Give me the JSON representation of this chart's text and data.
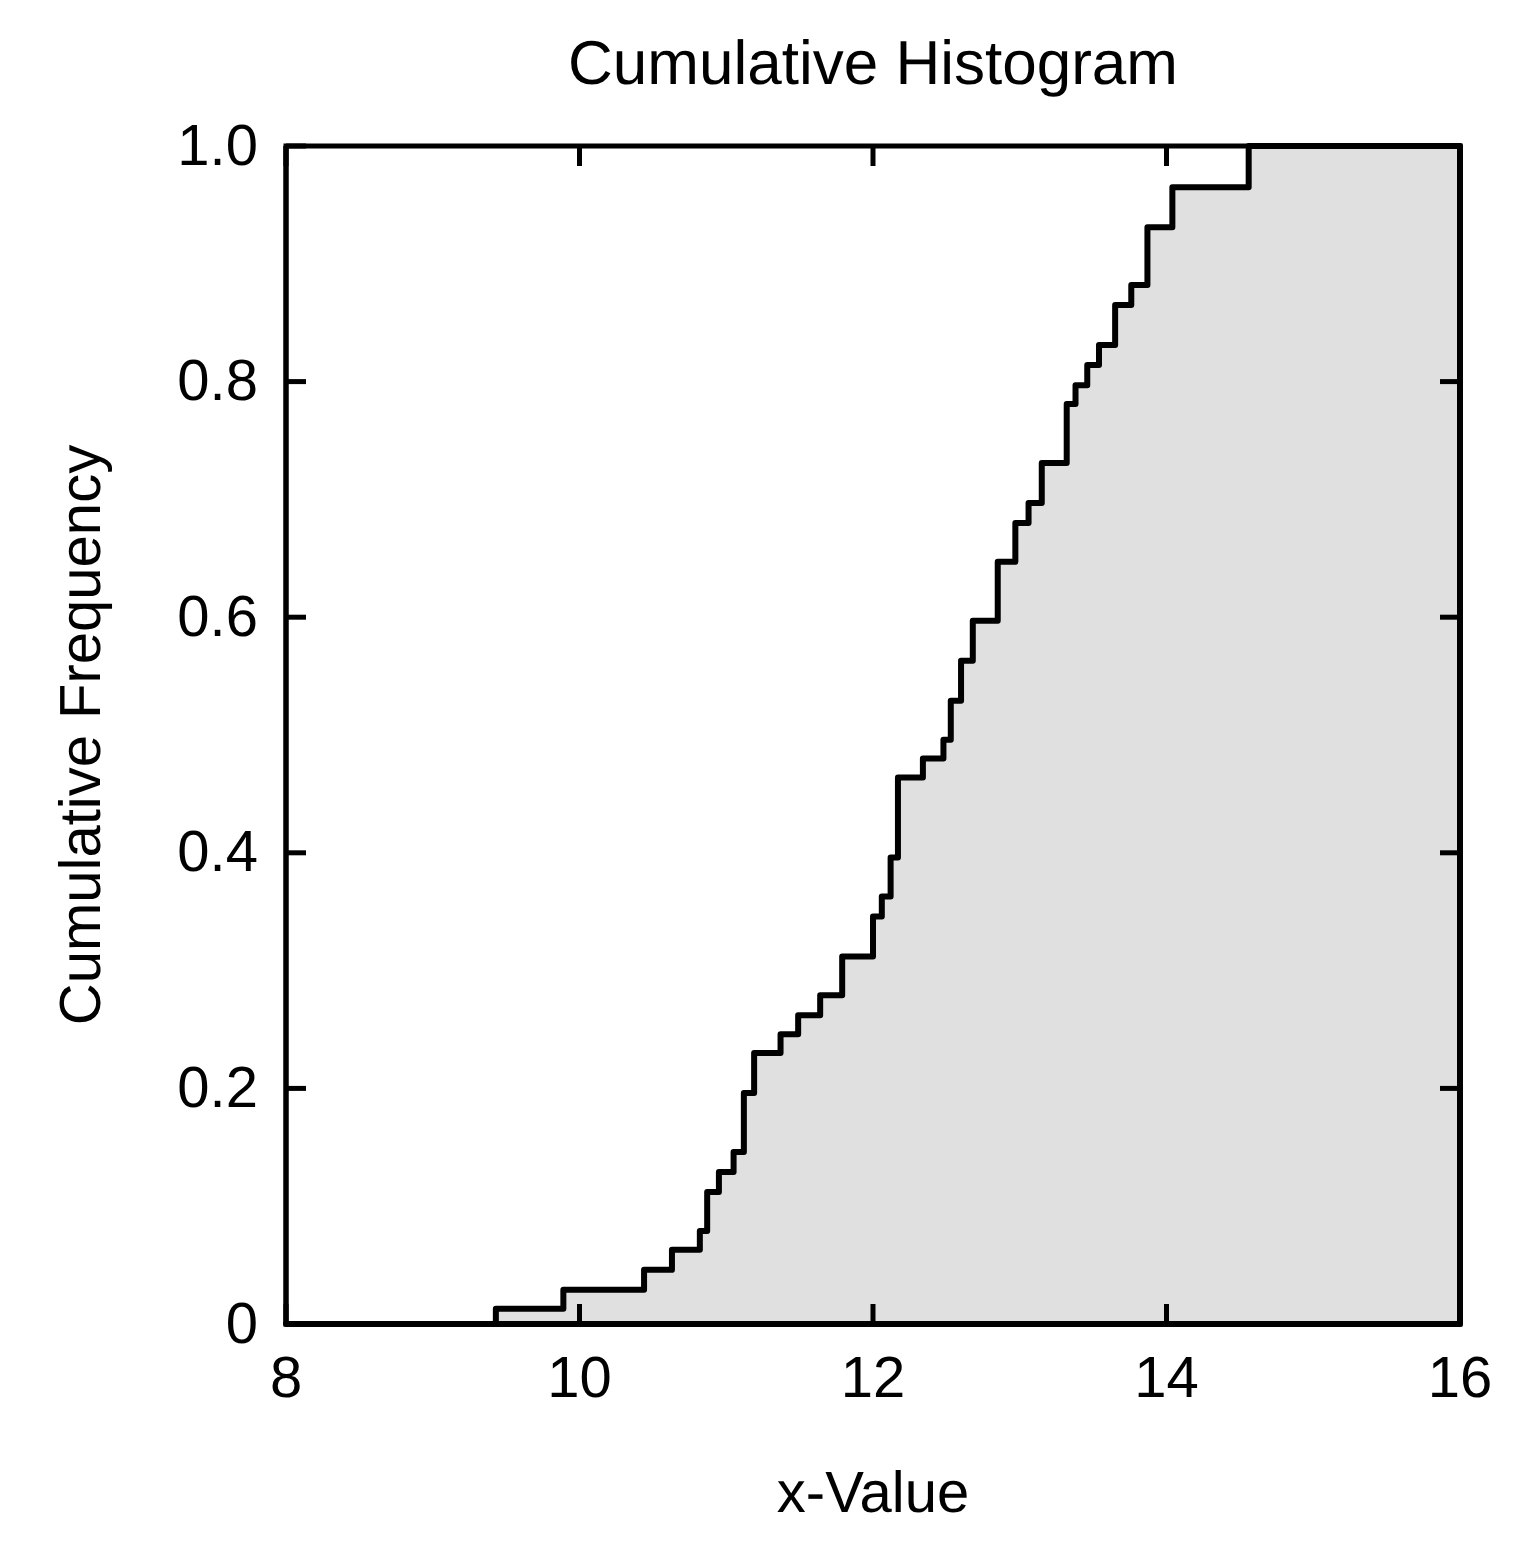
{
  "chart_data": {
    "type": "area",
    "title": "Cumulative Histogram",
    "xlabel": "x-Value",
    "ylabel": "Cumulative Frequency",
    "x": [
      8,
      9.43,
      9.89,
      10.44,
      10.63,
      10.82,
      10.87,
      10.95,
      11.05,
      11.12,
      11.19,
      11.37,
      11.49,
      11.64,
      11.79,
      12.0,
      12.06,
      12.12,
      12.17,
      12.34,
      12.48,
      12.53,
      12.6,
      12.68,
      12.85,
      12.97,
      13.06,
      13.15,
      13.32,
      13.38,
      13.46,
      13.54,
      13.65,
      13.76,
      13.87,
      14.04,
      14.56,
      16
    ],
    "values": [
      0,
      0.013,
      0.029,
      0.046,
      0.063,
      0.079,
      0.112,
      0.129,
      0.146,
      0.196,
      0.23,
      0.246,
      0.262,
      0.279,
      0.312,
      0.346,
      0.363,
      0.396,
      0.464,
      0.48,
      0.496,
      0.529,
      0.563,
      0.597,
      0.647,
      0.68,
      0.697,
      0.731,
      0.781,
      0.797,
      0.814,
      0.831,
      0.865,
      0.882,
      0.931,
      0.965,
      1.0,
      1.0
    ],
    "color": "#e0e0e0",
    "line_style": "solid",
    "xlim": [
      8,
      16
    ],
    "ylim": [
      0,
      1
    ],
    "xticks": [
      8,
      10,
      12,
      14,
      16
    ],
    "yticks": [
      0,
      0.2,
      0.4,
      0.6,
      0.8,
      {
        "value": 1,
        "label": "1.0"
      }
    ],
    "grid": false
  }
}
